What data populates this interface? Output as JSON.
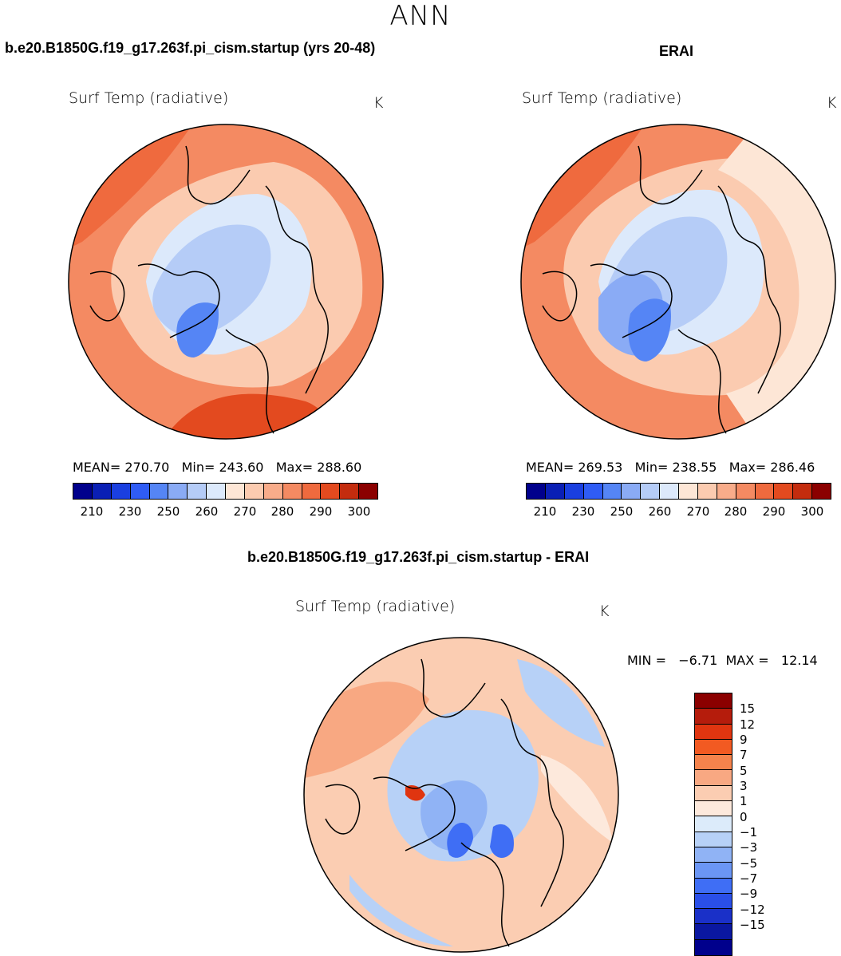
{
  "season": "ANN",
  "panels": [
    {
      "title": "b.e20.B1850G.f19_g17.263f.pi_cism.startup (yrs 20-48)",
      "variable": "Surf Temp (radiative)",
      "units": "K",
      "stats": {
        "mean_label": "MEAN=",
        "mean": "270.70",
        "min_label": "Min=",
        "min": "243.60",
        "max_label": "Max=",
        "max": "288.60"
      }
    },
    {
      "title": "ERAI",
      "variable": "Surf Temp (radiative)",
      "units": "K",
      "stats": {
        "mean_label": "MEAN=",
        "mean": "269.53",
        "min_label": "Min=",
        "min": "238.55",
        "max_label": "Max=",
        "max": "286.46"
      }
    }
  ],
  "diff_panel": {
    "title": "b.e20.B1850G.f19_g17.263f.pi_cism.startup - ERAI",
    "variable": "Surf Temp (radiative)",
    "units": "K",
    "minmax": "MIN =   −6.71  MAX =   12.14"
  },
  "colorbar_abs": {
    "colors": [
      "#00008c",
      "#0a1fb5",
      "#1a3fe0",
      "#2f5cf5",
      "#5585f5",
      "#8aabf5",
      "#b5ccf7",
      "#dce9fb",
      "#fde6d6",
      "#fbcbb0",
      "#f8ac8a",
      "#f48a62",
      "#ef6a3e",
      "#e34a1f",
      "#c42c0e",
      "#8b0000"
    ],
    "tick_labels": [
      "210",
      "230",
      "250",
      "260",
      "270",
      "280",
      "290",
      "300"
    ]
  },
  "colorbar_diff": {
    "colors": [
      "#8b0000",
      "#b51c0c",
      "#e03510",
      "#f25a22",
      "#f5834c",
      "#f8a882",
      "#fbcdb2",
      "#fde9dc",
      "#dcebfa",
      "#b7d1f7",
      "#90b3f5",
      "#6b96f5",
      "#3f6ef5",
      "#2a4fe8",
      "#1a30c8",
      "#0a17a0",
      "#00008c"
    ],
    "labels": [
      "15",
      "12",
      "9",
      "7",
      "5",
      "3",
      "1",
      "0",
      "−1",
      "−3",
      "−5",
      "−7",
      "−9",
      "−12",
      "−15"
    ]
  },
  "colors": {
    "warm": "#f48a62",
    "warm_deep": "#ef6a3e",
    "warm_light": "#fbcbb0",
    "cold_light": "#dce9fb",
    "cold": "#b5ccf7",
    "cold_mid": "#8aabf5",
    "cold_deep": "#5585f5"
  }
}
